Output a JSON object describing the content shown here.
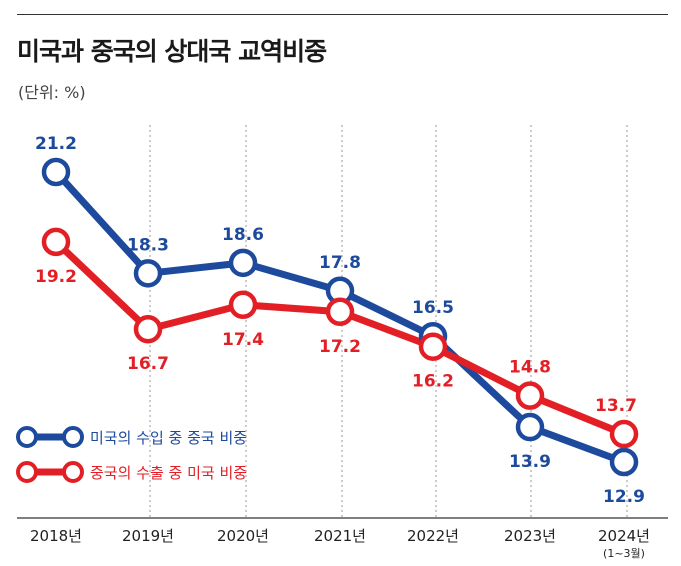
{
  "chart_data": {
    "type": "line",
    "title": "미국과 중국의 상대국 교역비중",
    "unit": "(단위: %)",
    "categories": [
      "2018년",
      "2019년",
      "2020년",
      "2021년",
      "2022년",
      "2023년",
      "2024년"
    ],
    "category_notes": [
      "",
      "",
      "",
      "",
      "",
      "",
      "(1~3월)"
    ],
    "series": [
      {
        "name": "미국의 수입 중 중국 비중",
        "color": "#1d4a9c",
        "values": [
          21.2,
          18.3,
          18.6,
          17.8,
          16.5,
          13.9,
          12.9
        ]
      },
      {
        "name": "중국의 수출 중 미국 비중",
        "color": "#e31f26",
        "values": [
          19.2,
          16.7,
          17.4,
          17.2,
          16.2,
          14.8,
          13.7
        ]
      }
    ],
    "ylim": [
      12,
      22
    ],
    "grid": "vertical-dotted",
    "legend_position": "bottom-left"
  }
}
